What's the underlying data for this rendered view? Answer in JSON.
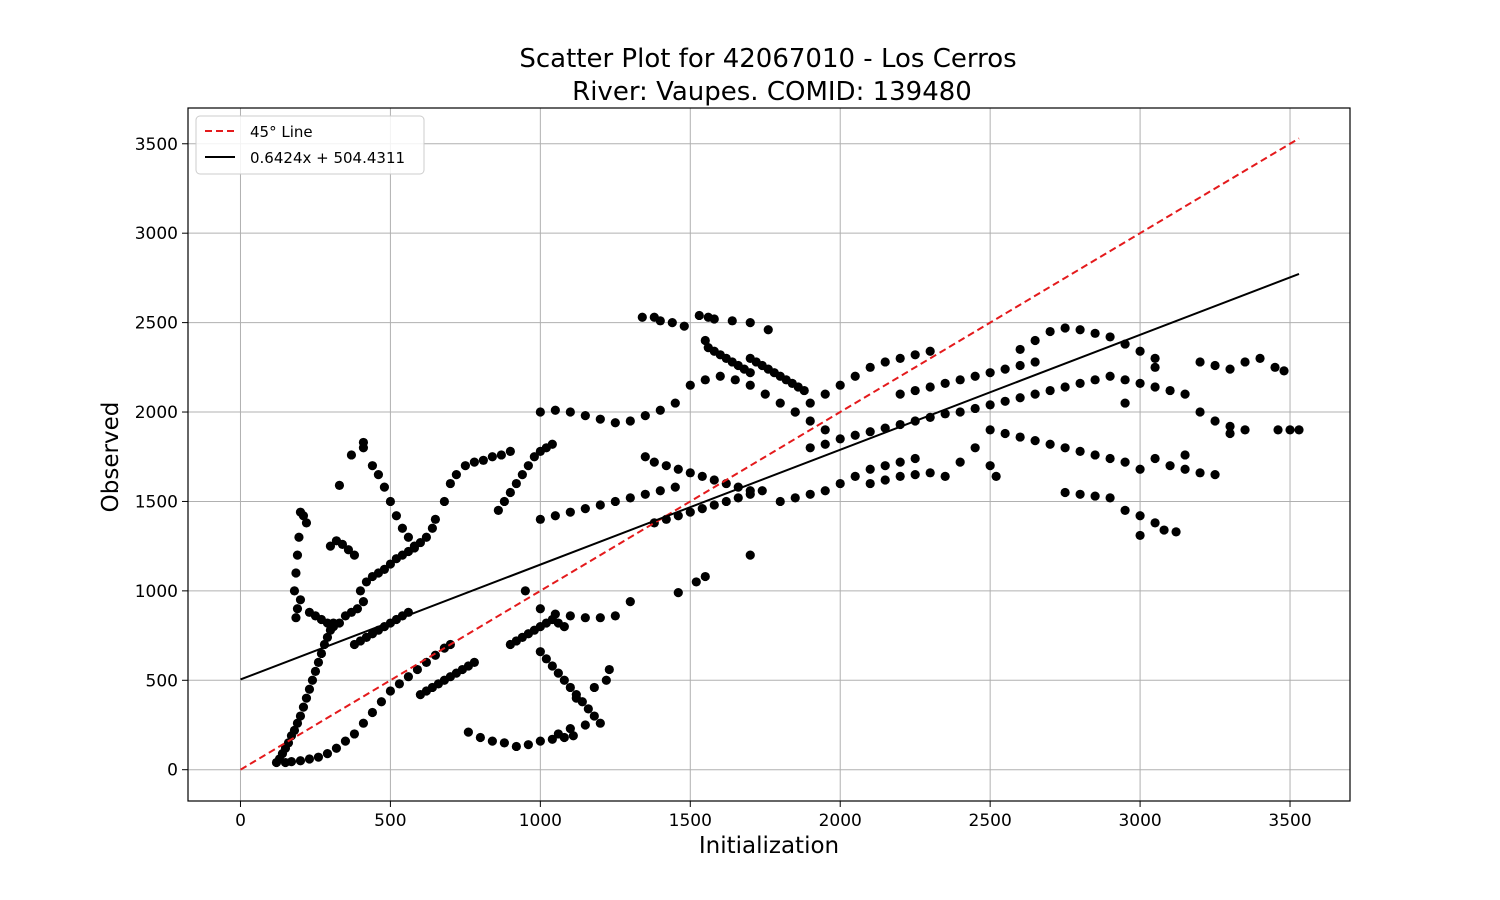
{
  "chart_data": {
    "type": "scatter",
    "title": "Scatter Plot for 42067010 - Los Cerros",
    "subtitle": "River: Vaupes. COMID: 139480",
    "xlabel": "Initialization",
    "ylabel": "Observed",
    "xlim": [
      -175,
      3700
    ],
    "ylim": [
      -175,
      3700
    ],
    "xticks": [
      0,
      500,
      1000,
      1500,
      2000,
      2500,
      3000,
      3500
    ],
    "yticks": [
      0,
      500,
      1000,
      1500,
      2000,
      2500,
      3000,
      3500
    ],
    "grid": true,
    "legend_position": "top-left",
    "colors": {
      "points": "#000000",
      "identity_line": "#e41a1c",
      "fit_line": "#000000"
    },
    "lines": [
      {
        "name": "45° Line",
        "style": "dashed",
        "color": "#e41a1c",
        "x": [
          0,
          3530
        ],
        "y": [
          0,
          3530
        ]
      },
      {
        "name": "0.6424x + 504.4311",
        "style": "solid",
        "color": "#000000",
        "slope": 0.6424,
        "intercept": 504.4311,
        "x": [
          0,
          3530
        ]
      }
    ],
    "points": [
      [
        120,
        40
      ],
      [
        130,
        60
      ],
      [
        140,
        90
      ],
      [
        150,
        120
      ],
      [
        160,
        150
      ],
      [
        170,
        190
      ],
      [
        180,
        220
      ],
      [
        190,
        260
      ],
      [
        200,
        300
      ],
      [
        210,
        350
      ],
      [
        220,
        400
      ],
      [
        230,
        450
      ],
      [
        240,
        500
      ],
      [
        250,
        550
      ],
      [
        260,
        600
      ],
      [
        270,
        650
      ],
      [
        280,
        700
      ],
      [
        290,
        740
      ],
      [
        300,
        780
      ],
      [
        310,
        820
      ],
      [
        150,
        40
      ],
      [
        170,
        45
      ],
      [
        200,
        50
      ],
      [
        230,
        60
      ],
      [
        260,
        70
      ],
      [
        290,
        90
      ],
      [
        320,
        120
      ],
      [
        350,
        160
      ],
      [
        380,
        200
      ],
      [
        410,
        260
      ],
      [
        440,
        320
      ],
      [
        470,
        380
      ],
      [
        500,
        440
      ],
      [
        530,
        480
      ],
      [
        560,
        520
      ],
      [
        590,
        560
      ],
      [
        620,
        600
      ],
      [
        650,
        640
      ],
      [
        680,
        680
      ],
      [
        700,
        700
      ],
      [
        180,
        1000
      ],
      [
        185,
        1100
      ],
      [
        190,
        1200
      ],
      [
        195,
        1300
      ],
      [
        200,
        1440
      ],
      [
        210,
        1420
      ],
      [
        220,
        1380
      ],
      [
        200,
        950
      ],
      [
        190,
        900
      ],
      [
        185,
        850
      ],
      [
        230,
        880
      ],
      [
        250,
        860
      ],
      [
        270,
        840
      ],
      [
        290,
        820
      ],
      [
        310,
        800
      ],
      [
        330,
        820
      ],
      [
        350,
        860
      ],
      [
        370,
        880
      ],
      [
        390,
        900
      ],
      [
        410,
        940
      ],
      [
        300,
        1250
      ],
      [
        320,
        1280
      ],
      [
        340,
        1260
      ],
      [
        360,
        1230
      ],
      [
        380,
        1200
      ],
      [
        330,
        1590
      ],
      [
        370,
        1760
      ],
      [
        410,
        1830
      ],
      [
        410,
        1800
      ],
      [
        440,
        1700
      ],
      [
        460,
        1650
      ],
      [
        480,
        1580
      ],
      [
        500,
        1500
      ],
      [
        520,
        1420
      ],
      [
        540,
        1350
      ],
      [
        560,
        1300
      ],
      [
        580,
        1250
      ],
      [
        600,
        1270
      ],
      [
        620,
        1300
      ],
      [
        640,
        1350
      ],
      [
        400,
        1000
      ],
      [
        420,
        1050
      ],
      [
        440,
        1080
      ],
      [
        460,
        1100
      ],
      [
        480,
        1120
      ],
      [
        500,
        1150
      ],
      [
        520,
        1180
      ],
      [
        540,
        1200
      ],
      [
        560,
        1220
      ],
      [
        580,
        1240
      ],
      [
        380,
        700
      ],
      [
        400,
        720
      ],
      [
        420,
        740
      ],
      [
        440,
        760
      ],
      [
        460,
        780
      ],
      [
        480,
        800
      ],
      [
        500,
        820
      ],
      [
        520,
        840
      ],
      [
        540,
        860
      ],
      [
        560,
        880
      ],
      [
        600,
        420
      ],
      [
        620,
        440
      ],
      [
        640,
        460
      ],
      [
        660,
        480
      ],
      [
        680,
        500
      ],
      [
        700,
        520
      ],
      [
        720,
        540
      ],
      [
        740,
        560
      ],
      [
        760,
        580
      ],
      [
        780,
        600
      ],
      [
        650,
        1400
      ],
      [
        680,
        1500
      ],
      [
        700,
        1600
      ],
      [
        720,
        1650
      ],
      [
        750,
        1700
      ],
      [
        780,
        1720
      ],
      [
        810,
        1730
      ],
      [
        840,
        1750
      ],
      [
        870,
        1760
      ],
      [
        900,
        1780
      ],
      [
        760,
        210
      ],
      [
        800,
        180
      ],
      [
        840,
        160
      ],
      [
        880,
        150
      ],
      [
        920,
        130
      ],
      [
        960,
        140
      ],
      [
        1000,
        160
      ],
      [
        1040,
        170
      ],
      [
        1080,
        180
      ],
      [
        1110,
        190
      ],
      [
        900,
        700
      ],
      [
        920,
        720
      ],
      [
        940,
        740
      ],
      [
        960,
        760
      ],
      [
        980,
        780
      ],
      [
        1000,
        800
      ],
      [
        1020,
        820
      ],
      [
        1040,
        840
      ],
      [
        1060,
        820
      ],
      [
        1080,
        800
      ],
      [
        860,
        1450
      ],
      [
        880,
        1500
      ],
      [
        900,
        1550
      ],
      [
        920,
        1600
      ],
      [
        940,
        1650
      ],
      [
        960,
        1700
      ],
      [
        980,
        1750
      ],
      [
        1000,
        1780
      ],
      [
        1020,
        1800
      ],
      [
        1040,
        1820
      ],
      [
        1000,
        2000
      ],
      [
        1050,
        2010
      ],
      [
        1100,
        2000
      ],
      [
        1150,
        1980
      ],
      [
        1200,
        1960
      ],
      [
        1250,
        1940
      ],
      [
        1300,
        1950
      ],
      [
        1350,
        1980
      ],
      [
        1400,
        2010
      ],
      [
        1450,
        2050
      ],
      [
        1000,
        1400
      ],
      [
        1050,
        1420
      ],
      [
        1100,
        1440
      ],
      [
        1150,
        1460
      ],
      [
        1200,
        1480
      ],
      [
        1250,
        1500
      ],
      [
        1300,
        1520
      ],
      [
        1350,
        1540
      ],
      [
        1400,
        1560
      ],
      [
        1450,
        1580
      ],
      [
        950,
        1000
      ],
      [
        1000,
        900
      ],
      [
        1050,
        870
      ],
      [
        1100,
        860
      ],
      [
        1150,
        850
      ],
      [
        1200,
        850
      ],
      [
        1250,
        860
      ],
      [
        1300,
        940
      ],
      [
        1460,
        990
      ],
      [
        1520,
        1050
      ],
      [
        1550,
        1080
      ],
      [
        1700,
        1200
      ],
      [
        1120,
        400
      ],
      [
        1140,
        380
      ],
      [
        1160,
        340
      ],
      [
        1180,
        300
      ],
      [
        1200,
        260
      ],
      [
        1150,
        250
      ],
      [
        1100,
        230
      ],
      [
        1060,
        200
      ],
      [
        1000,
        660
      ],
      [
        1020,
        620
      ],
      [
        1040,
        580
      ],
      [
        1060,
        540
      ],
      [
        1080,
        500
      ],
      [
        1100,
        460
      ],
      [
        1120,
        420
      ],
      [
        1180,
        460
      ],
      [
        1220,
        500
      ],
      [
        1230,
        560
      ],
      [
        1340,
        2530
      ],
      [
        1380,
        2530
      ],
      [
        1400,
        2510
      ],
      [
        1440,
        2500
      ],
      [
        1480,
        2480
      ],
      [
        1530,
        2540
      ],
      [
        1560,
        2530
      ],
      [
        1580,
        2520
      ],
      [
        1640,
        2510
      ],
      [
        1700,
        2500
      ],
      [
        1760,
        2460
      ],
      [
        1550,
        2400
      ],
      [
        1560,
        2360
      ],
      [
        1580,
        2340
      ],
      [
        1600,
        2320
      ],
      [
        1620,
        2300
      ],
      [
        1640,
        2280
      ],
      [
        1660,
        2260
      ],
      [
        1680,
        2240
      ],
      [
        1700,
        2220
      ],
      [
        1700,
        2300
      ],
      [
        1720,
        2280
      ],
      [
        1740,
        2260
      ],
      [
        1760,
        2240
      ],
      [
        1780,
        2220
      ],
      [
        1800,
        2200
      ],
      [
        1820,
        2180
      ],
      [
        1840,
        2160
      ],
      [
        1860,
        2140
      ],
      [
        1880,
        2120
      ],
      [
        1500,
        2150
      ],
      [
        1550,
        2180
      ],
      [
        1600,
        2200
      ],
      [
        1650,
        2180
      ],
      [
        1700,
        2150
      ],
      [
        1750,
        2100
      ],
      [
        1800,
        2050
      ],
      [
        1850,
        2000
      ],
      [
        1900,
        1950
      ],
      [
        1950,
        1900
      ],
      [
        1350,
        1750
      ],
      [
        1380,
        1720
      ],
      [
        1420,
        1700
      ],
      [
        1460,
        1680
      ],
      [
        1500,
        1660
      ],
      [
        1540,
        1640
      ],
      [
        1580,
        1620
      ],
      [
        1620,
        1600
      ],
      [
        1660,
        1580
      ],
      [
        1700,
        1560
      ],
      [
        1380,
        1380
      ],
      [
        1420,
        1400
      ],
      [
        1460,
        1420
      ],
      [
        1500,
        1440
      ],
      [
        1540,
        1460
      ],
      [
        1580,
        1480
      ],
      [
        1620,
        1500
      ],
      [
        1660,
        1520
      ],
      [
        1700,
        1540
      ],
      [
        1740,
        1560
      ],
      [
        1800,
        1500
      ],
      [
        1850,
        1520
      ],
      [
        1900,
        1540
      ],
      [
        1950,
        1560
      ],
      [
        2000,
        1600
      ],
      [
        2050,
        1640
      ],
      [
        2100,
        1680
      ],
      [
        2150,
        1700
      ],
      [
        2200,
        1720
      ],
      [
        2250,
        1740
      ],
      [
        1850,
        2000
      ],
      [
        1900,
        2050
      ],
      [
        1950,
        2100
      ],
      [
        2000,
        2150
      ],
      [
        2050,
        2200
      ],
      [
        2100,
        2250
      ],
      [
        2150,
        2280
      ],
      [
        2200,
        2300
      ],
      [
        2250,
        2320
      ],
      [
        2300,
        2340
      ],
      [
        1900,
        1800
      ],
      [
        1950,
        1820
      ],
      [
        2000,
        1850
      ],
      [
        2050,
        1870
      ],
      [
        2100,
        1890
      ],
      [
        2150,
        1910
      ],
      [
        2200,
        1930
      ],
      [
        2250,
        1950
      ],
      [
        2300,
        1970
      ],
      [
        2350,
        1990
      ],
      [
        2100,
        1600
      ],
      [
        2150,
        1620
      ],
      [
        2200,
        1640
      ],
      [
        2250,
        1650
      ],
      [
        2300,
        1660
      ],
      [
        2350,
        1640
      ],
      [
        2400,
        1720
      ],
      [
        2450,
        1800
      ],
      [
        2500,
        1700
      ],
      [
        2520,
        1640
      ],
      [
        2200,
        2100
      ],
      [
        2250,
        2120
      ],
      [
        2300,
        2140
      ],
      [
        2350,
        2160
      ],
      [
        2400,
        2180
      ],
      [
        2450,
        2200
      ],
      [
        2500,
        2220
      ],
      [
        2550,
        2240
      ],
      [
        2600,
        2260
      ],
      [
        2650,
        2280
      ],
      [
        2400,
        2000
      ],
      [
        2450,
        2020
      ],
      [
        2500,
        2040
      ],
      [
        2550,
        2060
      ],
      [
        2600,
        2080
      ],
      [
        2650,
        2100
      ],
      [
        2700,
        2120
      ],
      [
        2750,
        2140
      ],
      [
        2800,
        2160
      ],
      [
        2850,
        2180
      ],
      [
        2600,
        2350
      ],
      [
        2650,
        2400
      ],
      [
        2700,
        2450
      ],
      [
        2750,
        2470
      ],
      [
        2800,
        2460
      ],
      [
        2850,
        2440
      ],
      [
        2900,
        2420
      ],
      [
        2950,
        2380
      ],
      [
        3000,
        2340
      ],
      [
        3050,
        2300
      ],
      [
        2500,
        1900
      ],
      [
        2550,
        1880
      ],
      [
        2600,
        1860
      ],
      [
        2650,
        1840
      ],
      [
        2700,
        1820
      ],
      [
        2750,
        1800
      ],
      [
        2800,
        1780
      ],
      [
        2850,
        1760
      ],
      [
        2900,
        1740
      ],
      [
        2950,
        1720
      ],
      [
        2750,
        1550
      ],
      [
        2800,
        1540
      ],
      [
        2850,
        1530
      ],
      [
        2900,
        1520
      ],
      [
        2950,
        1450
      ],
      [
        3000,
        1420
      ],
      [
        3050,
        1380
      ],
      [
        3080,
        1340
      ],
      [
        3120,
        1330
      ],
      [
        3000,
        1310
      ],
      [
        2900,
        2200
      ],
      [
        2950,
        2180
      ],
      [
        3000,
        2160
      ],
      [
        3050,
        2140
      ],
      [
        3100,
        2120
      ],
      [
        3150,
        2100
      ],
      [
        3200,
        2000
      ],
      [
        3250,
        1950
      ],
      [
        3300,
        1920
      ],
      [
        3350,
        1900
      ],
      [
        3200,
        2280
      ],
      [
        3250,
        2260
      ],
      [
        3300,
        2240
      ],
      [
        3350,
        2280
      ],
      [
        3400,
        2300
      ],
      [
        3450,
        2250
      ],
      [
        3480,
        2230
      ],
      [
        3460,
        1900
      ],
      [
        3500,
        1900
      ],
      [
        3530,
        1900
      ],
      [
        3100,
        1700
      ],
      [
        3150,
        1680
      ],
      [
        3200,
        1660
      ],
      [
        3250,
        1650
      ],
      [
        3300,
        1880
      ],
      [
        3150,
        1760
      ],
      [
        3050,
        1740
      ],
      [
        3000,
        1680
      ],
      [
        2950,
        2050
      ],
      [
        3050,
        2250
      ]
    ]
  }
}
